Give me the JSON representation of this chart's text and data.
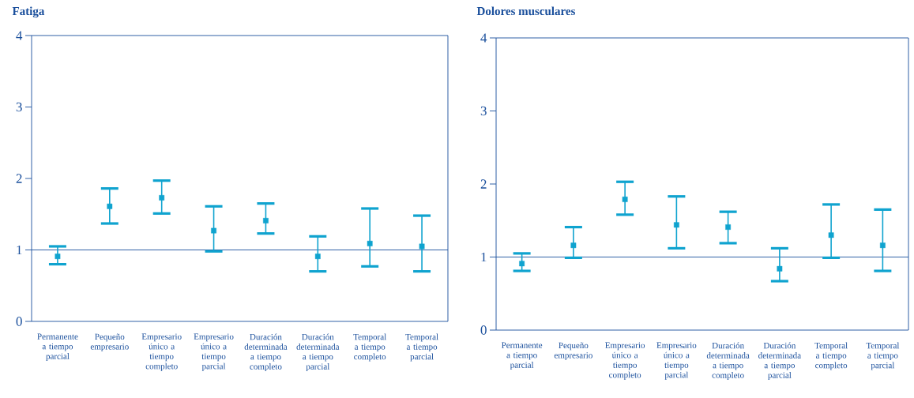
{
  "chart_data": [
    {
      "type": "scatter",
      "title": "Fatiga",
      "categories": [
        "Permanente a tiempo parcial",
        "Pequeño empresario",
        "Empresario único a tiempo completo",
        "Empresario único a tiempo parcial",
        "Duración determinada a tiempo completo",
        "Duración determinada a tiempo parcial",
        "Temporal a tiempo completo",
        "Temporal a tiempo parcial"
      ],
      "series": [
        {
          "color": "#0fa3cf",
          "values": [
            0.91,
            1.61,
            1.73,
            1.27,
            1.41,
            0.91,
            1.09,
            1.05
          ],
          "errors": [
            [
              0.8,
              1.05
            ],
            [
              1.37,
              1.86
            ],
            [
              1.51,
              1.97
            ],
            [
              0.98,
              1.61
            ],
            [
              1.23,
              1.65
            ],
            [
              0.7,
              1.19
            ],
            [
              0.77,
              1.58
            ],
            [
              0.7,
              1.48
            ]
          ]
        }
      ],
      "ylim": [
        0,
        4
      ],
      "yticks": [
        0,
        1,
        2,
        3,
        4
      ],
      "marker": "square",
      "ref_lines": [
        {
          "axis": "y",
          "value": 1,
          "color": "#1a4f9c"
        }
      ]
    },
    {
      "type": "scatter",
      "title": "Dolores musculares",
      "categories": [
        "Permanente a tiempo parcial",
        "Pequeño empresario",
        "Empresario único a tiempo completo",
        "Empresario único a tiempo parcial",
        "Duración determinada a tiempo completo",
        "Duración determinada a tiempo parcial",
        "Temporal a tiempo completo",
        "Temporal a tiempo parcial"
      ],
      "series": [
        {
          "color": "#0fa3cf",
          "values": [
            0.91,
            1.16,
            1.79,
            1.44,
            1.41,
            0.84,
            1.3,
            1.16
          ],
          "errors": [
            [
              0.81,
              1.05
            ],
            [
              0.99,
              1.41
            ],
            [
              1.58,
              2.03
            ],
            [
              1.12,
              1.83
            ],
            [
              1.19,
              1.62
            ],
            [
              0.67,
              1.12
            ],
            [
              0.99,
              1.72
            ],
            [
              0.81,
              1.65
            ]
          ]
        }
      ],
      "ylim": [
        0,
        4
      ],
      "yticks": [
        0,
        1,
        2,
        3,
        4
      ],
      "marker": "square",
      "ref_lines": [
        {
          "axis": "y",
          "value": 1,
          "color": "#1a4f9c"
        }
      ]
    }
  ]
}
